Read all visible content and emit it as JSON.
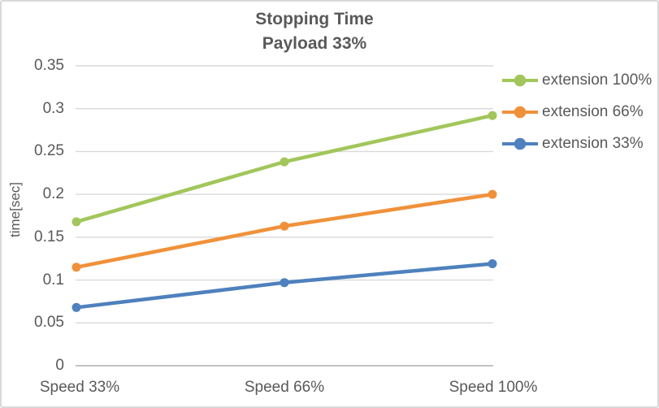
{
  "window": {
    "background": "#ffffff",
    "border_color": "#d9d9d9"
  },
  "chart_data": {
    "type": "line",
    "title": "Stopping Time",
    "subtitle": "Payload 33%",
    "ylabel": "time[sec]",
    "xlabel": "",
    "categories": [
      "Speed 33%",
      "Speed 66%",
      "Speed 100%"
    ],
    "series": [
      {
        "name": "extension 100%",
        "color": "#a2c65b",
        "values": [
          0.168,
          0.238,
          0.292
        ]
      },
      {
        "name": "extension 66%",
        "color": "#f0913a",
        "values": [
          0.115,
          0.163,
          0.2
        ]
      },
      {
        "name": "extension 33%",
        "color": "#4e81bd",
        "values": [
          0.068,
          0.097,
          0.119
        ]
      }
    ],
    "ylim": [
      0,
      0.35
    ],
    "y_ticks": [
      0,
      0.05,
      0.1,
      0.15,
      0.2,
      0.25,
      0.3,
      0.35
    ],
    "y_tick_labels": [
      "0",
      "0.05",
      "0.1",
      "0.15",
      "0.2",
      "0.25",
      "0.3",
      "0.35"
    ],
    "grid": true,
    "legend_position": "right",
    "gridline_color": "#d9d9d9",
    "axis_line_color": "#c3c3c3",
    "text_color": "#595959",
    "marker": "circle"
  }
}
